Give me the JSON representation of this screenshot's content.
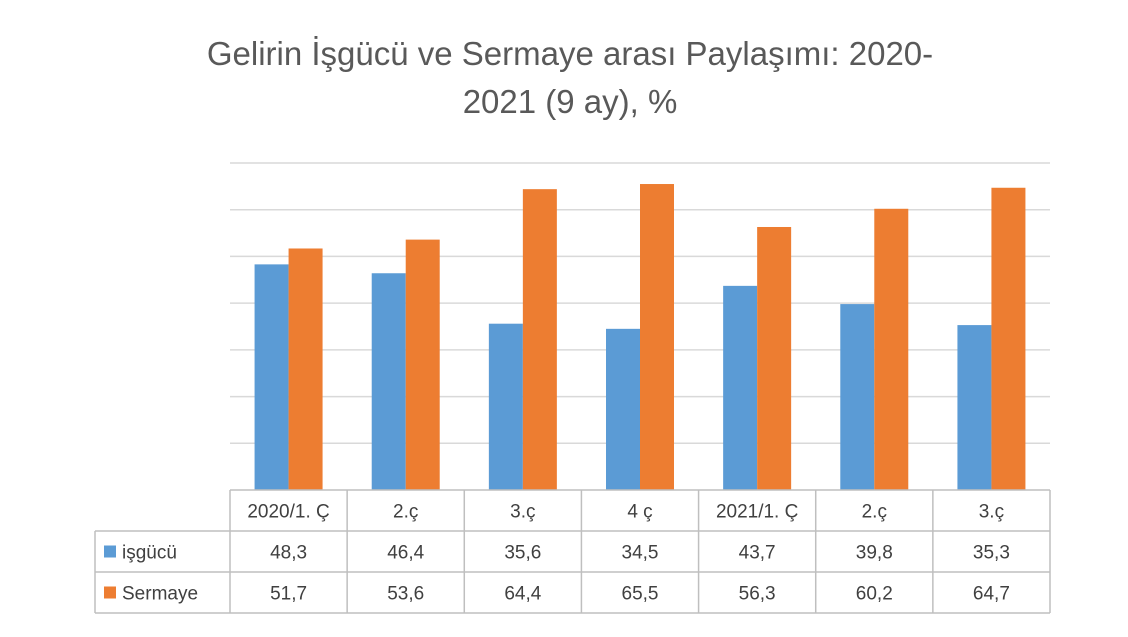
{
  "chart_data": {
    "type": "bar",
    "title_line1": "Gelirin İşgücü ve Sermaye arası Paylaşımı: 2020-",
    "title_line2": "2021 (9 ay), %",
    "categories": [
      "2020/1. Ç",
      "2.ç",
      "3.ç",
      "4 ç",
      "2021/1. Ç",
      "2.ç",
      "3.ç"
    ],
    "series": [
      {
        "name": "işgücü",
        "color": "#5B9BD5",
        "values": [
          48.3,
          46.4,
          35.6,
          34.5,
          43.7,
          39.8,
          35.3
        ]
      },
      {
        "name": "Sermaye",
        "color": "#ED7D31",
        "values": [
          51.7,
          53.6,
          64.4,
          65.5,
          56.3,
          60.2,
          64.7
        ]
      }
    ],
    "value_labels": [
      [
        "48,3",
        "46,4",
        "35,6",
        "34,5",
        "43,7",
        "39,8",
        "35,3"
      ],
      [
        "51,7",
        "53,6",
        "64,4",
        "65,5",
        "56,3",
        "60,2",
        "64,7"
      ]
    ],
    "ylim": [
      0,
      70
    ],
    "grid": true,
    "legend": "data-table"
  }
}
